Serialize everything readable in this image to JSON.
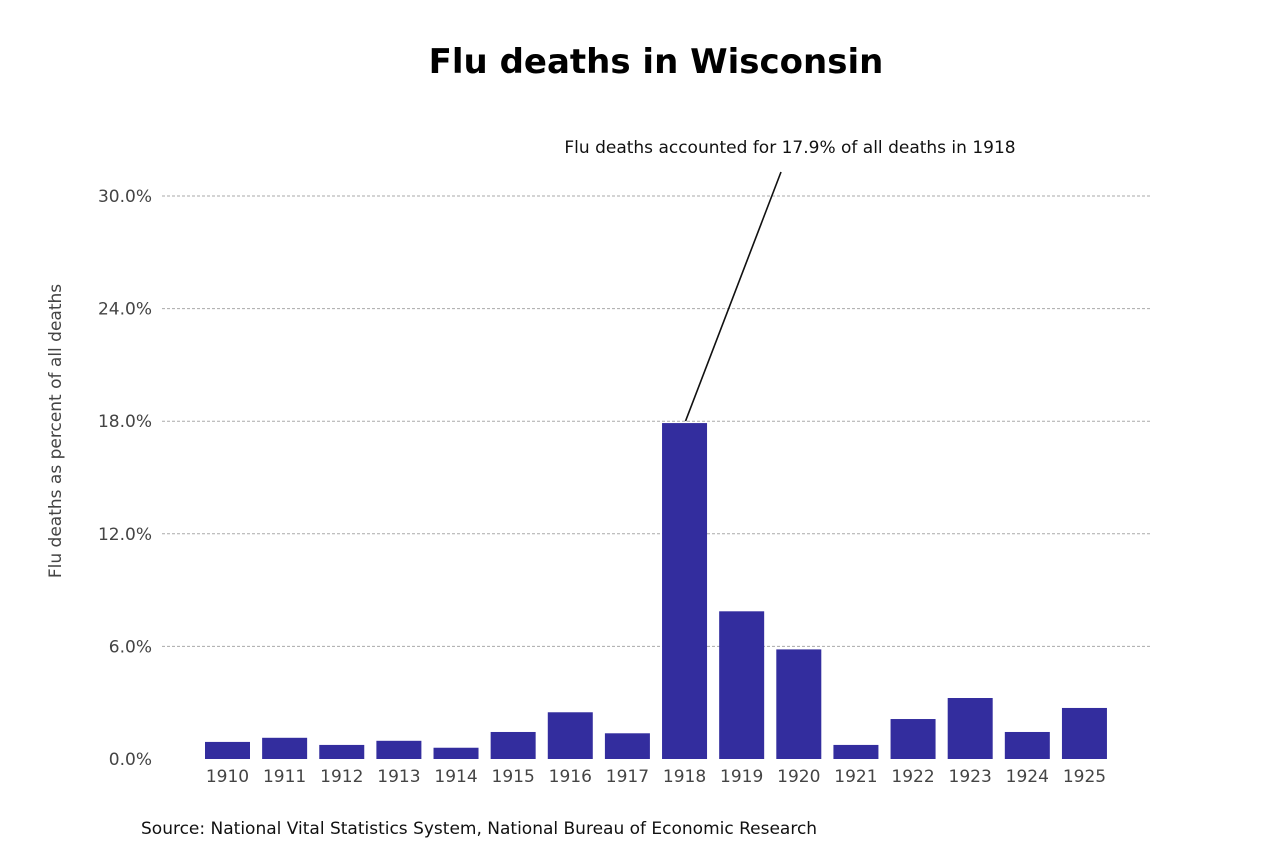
{
  "chart_data": {
    "type": "bar",
    "title": "Flu deaths in Wisconsin",
    "xlabel": "",
    "ylabel": "Flu deaths as percent of all deaths",
    "ylim": [
      0,
      30
    ],
    "yticks": [
      "0.0%",
      "6.0%",
      "12.0%",
      "18.0%",
      "24.0%",
      "30.0%"
    ],
    "grid": "horizontal dashed",
    "categories": [
      "1910",
      "1911",
      "1912",
      "1913",
      "1914",
      "1915",
      "1916",
      "1917",
      "1918",
      "1919",
      "1920",
      "1921",
      "1922",
      "1923",
      "1924",
      "1925"
    ],
    "values": [
      0.91,
      1.13,
      0.75,
      0.97,
      0.6,
      1.44,
      2.49,
      1.37,
      17.9,
      7.87,
      5.84,
      0.75,
      2.13,
      3.25,
      1.44,
      2.72
    ],
    "bar_color": "#332d9e",
    "annotation": {
      "text": "Flu deaths accounted for 17.9% of all deaths in 1918",
      "category": "1918",
      "value": 17.9
    },
    "source": "Source: National Vital Statistics System, National Bureau of Economic Research"
  }
}
